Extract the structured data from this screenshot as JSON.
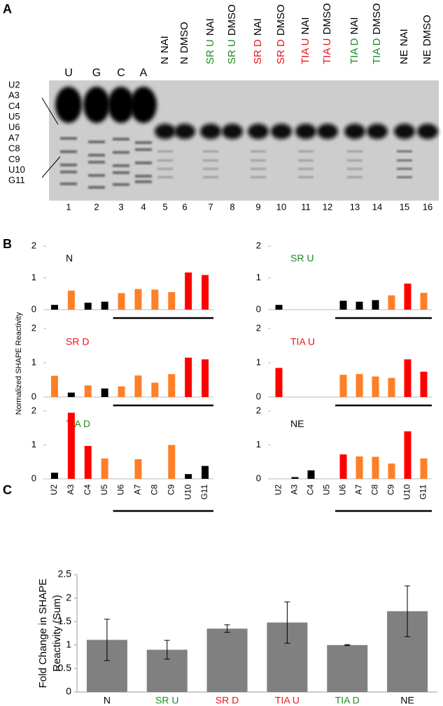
{
  "panel_labels": [
    "A",
    "B",
    "C"
  ],
  "gel": {
    "lanes": [
      {
        "sample": "U",
        "number": "1"
      },
      {
        "sample": "G",
        "number": "2"
      },
      {
        "sample": "C",
        "number": "3"
      },
      {
        "sample": "A",
        "number": "4"
      },
      {
        "sample": "N",
        "treatment": "NAI",
        "color": "#000000",
        "number": "5"
      },
      {
        "sample": "N",
        "treatment": "DMSO",
        "color": "#000000",
        "number": "6"
      },
      {
        "sample": "SR U",
        "treatment": "NAI",
        "color": "#1e8c1e",
        "number": "7"
      },
      {
        "sample": "SR U",
        "treatment": "DMSO",
        "color": "#1e8c1e",
        "number": "8"
      },
      {
        "sample": "SR D",
        "treatment": "NAI",
        "color": "#e8141a",
        "number": "9"
      },
      {
        "sample": "SR D",
        "treatment": "DMSO",
        "color": "#e8141a",
        "number": "10"
      },
      {
        "sample": "TIA U",
        "treatment": "NAI",
        "color": "#e8141a",
        "number": "11"
      },
      {
        "sample": "TIA U",
        "treatment": "DMSO",
        "color": "#e8141a",
        "number": "12"
      },
      {
        "sample": "TIA D",
        "treatment": "NAI",
        "color": "#1e8c1e",
        "number": "13"
      },
      {
        "sample": "TIA D",
        "treatment": "DMSO",
        "color": "#1e8c1e",
        "number": "14"
      },
      {
        "sample": "NE",
        "treatment": "NAI",
        "color": "#000000",
        "number": "15"
      },
      {
        "sample": "NE",
        "treatment": "DMSO",
        "color": "#000000",
        "number": "16"
      }
    ]
  },
  "chart_data": [
    {
      "type": "bar-grid",
      "ylabel": "Normalized SHAPE Reactivity",
      "categories": [
        "U2",
        "A3",
        "C4",
        "U5",
        "U6",
        "A7",
        "C8",
        "C9",
        "U10",
        "G11"
      ],
      "ylim": [
        0,
        2
      ],
      "yticks": [
        0,
        1,
        2
      ],
      "panels": [
        {
          "title": "N",
          "title_color": "#000000",
          "values": [
            0.15,
            0.6,
            0.22,
            0.25,
            0.52,
            0.65,
            0.63,
            0.55,
            1.17,
            1.09
          ],
          "colors": [
            "#000000",
            "#ff7f27",
            "#000000",
            "#000000",
            "#ff7f27",
            "#ff7f27",
            "#ff7f27",
            "#ff7f27",
            "#ff0000",
            "#ff0000"
          ]
        },
        {
          "title": "SR U",
          "title_color": "#1e8c1e",
          "values": [
            0.15,
            null,
            null,
            null,
            0.28,
            0.25,
            0.3,
            0.45,
            0.82,
            0.53
          ],
          "colors": [
            "#000000",
            null,
            null,
            null,
            "#000000",
            "#000000",
            "#000000",
            "#ff7f27",
            "#ff0000",
            "#ff7f27"
          ]
        },
        {
          "title": "SR D",
          "title_color": "#e8141a",
          "values": [
            0.62,
            0.13,
            0.34,
            0.25,
            0.31,
            0.63,
            0.42,
            0.67,
            1.15,
            1.1
          ],
          "colors": [
            "#ff7f27",
            "#000000",
            "#ff7f27",
            "#000000",
            "#ff7f27",
            "#ff7f27",
            "#ff7f27",
            "#ff7f27",
            "#ff0000",
            "#ff0000"
          ]
        },
        {
          "title": "TIA U",
          "title_color": "#e8141a",
          "values": [
            0.85,
            null,
            null,
            null,
            0.65,
            0.67,
            0.6,
            0.56,
            1.1,
            0.74
          ],
          "colors": [
            "#ff0000",
            null,
            null,
            null,
            "#ff7f27",
            "#ff7f27",
            "#ff7f27",
            "#ff7f27",
            "#ff0000",
            "#ff0000"
          ]
        },
        {
          "title": "TIA D",
          "title_color": "#1e8c1e",
          "values": [
            0.18,
            1.95,
            0.97,
            0.6,
            null,
            0.58,
            null,
            1.0,
            0.14,
            0.38
          ],
          "colors": [
            "#000000",
            "#ff0000",
            "#ff0000",
            "#ff7f27",
            null,
            "#ff7f27",
            null,
            "#ff7f27",
            "#000000",
            "#000000"
          ]
        },
        {
          "title": "NE",
          "title_color": "#000000",
          "values": [
            null,
            0.05,
            0.25,
            null,
            0.72,
            0.66,
            0.65,
            0.45,
            1.4,
            0.6
          ],
          "colors": [
            null,
            "#000000",
            "#000000",
            null,
            "#ff0000",
            "#ff7f27",
            "#ff7f27",
            "#ff7f27",
            "#ff0000",
            "#ff7f27"
          ]
        }
      ]
    },
    {
      "type": "bar",
      "ylabel": [
        "Fold Change in SHAPE",
        "Reactivity (Sum)"
      ],
      "categories": [
        "N",
        "SR U",
        "SR D",
        "TIA U",
        "TIA D",
        "NE"
      ],
      "category_colors": [
        "#000000",
        "#1e8c1e",
        "#e8141a",
        "#e8141a",
        "#1e8c1e",
        "#000000"
      ],
      "values": [
        1.11,
        0.9,
        1.35,
        1.48,
        1.0,
        1.72
      ],
      "errors": [
        0.44,
        0.2,
        0.08,
        0.44,
        0.01,
        0.54
      ],
      "color": "#808080",
      "ylim": [
        0,
        2.5
      ],
      "yticks": [
        0,
        0.5,
        1,
        1.5,
        2,
        2.5
      ]
    }
  ]
}
